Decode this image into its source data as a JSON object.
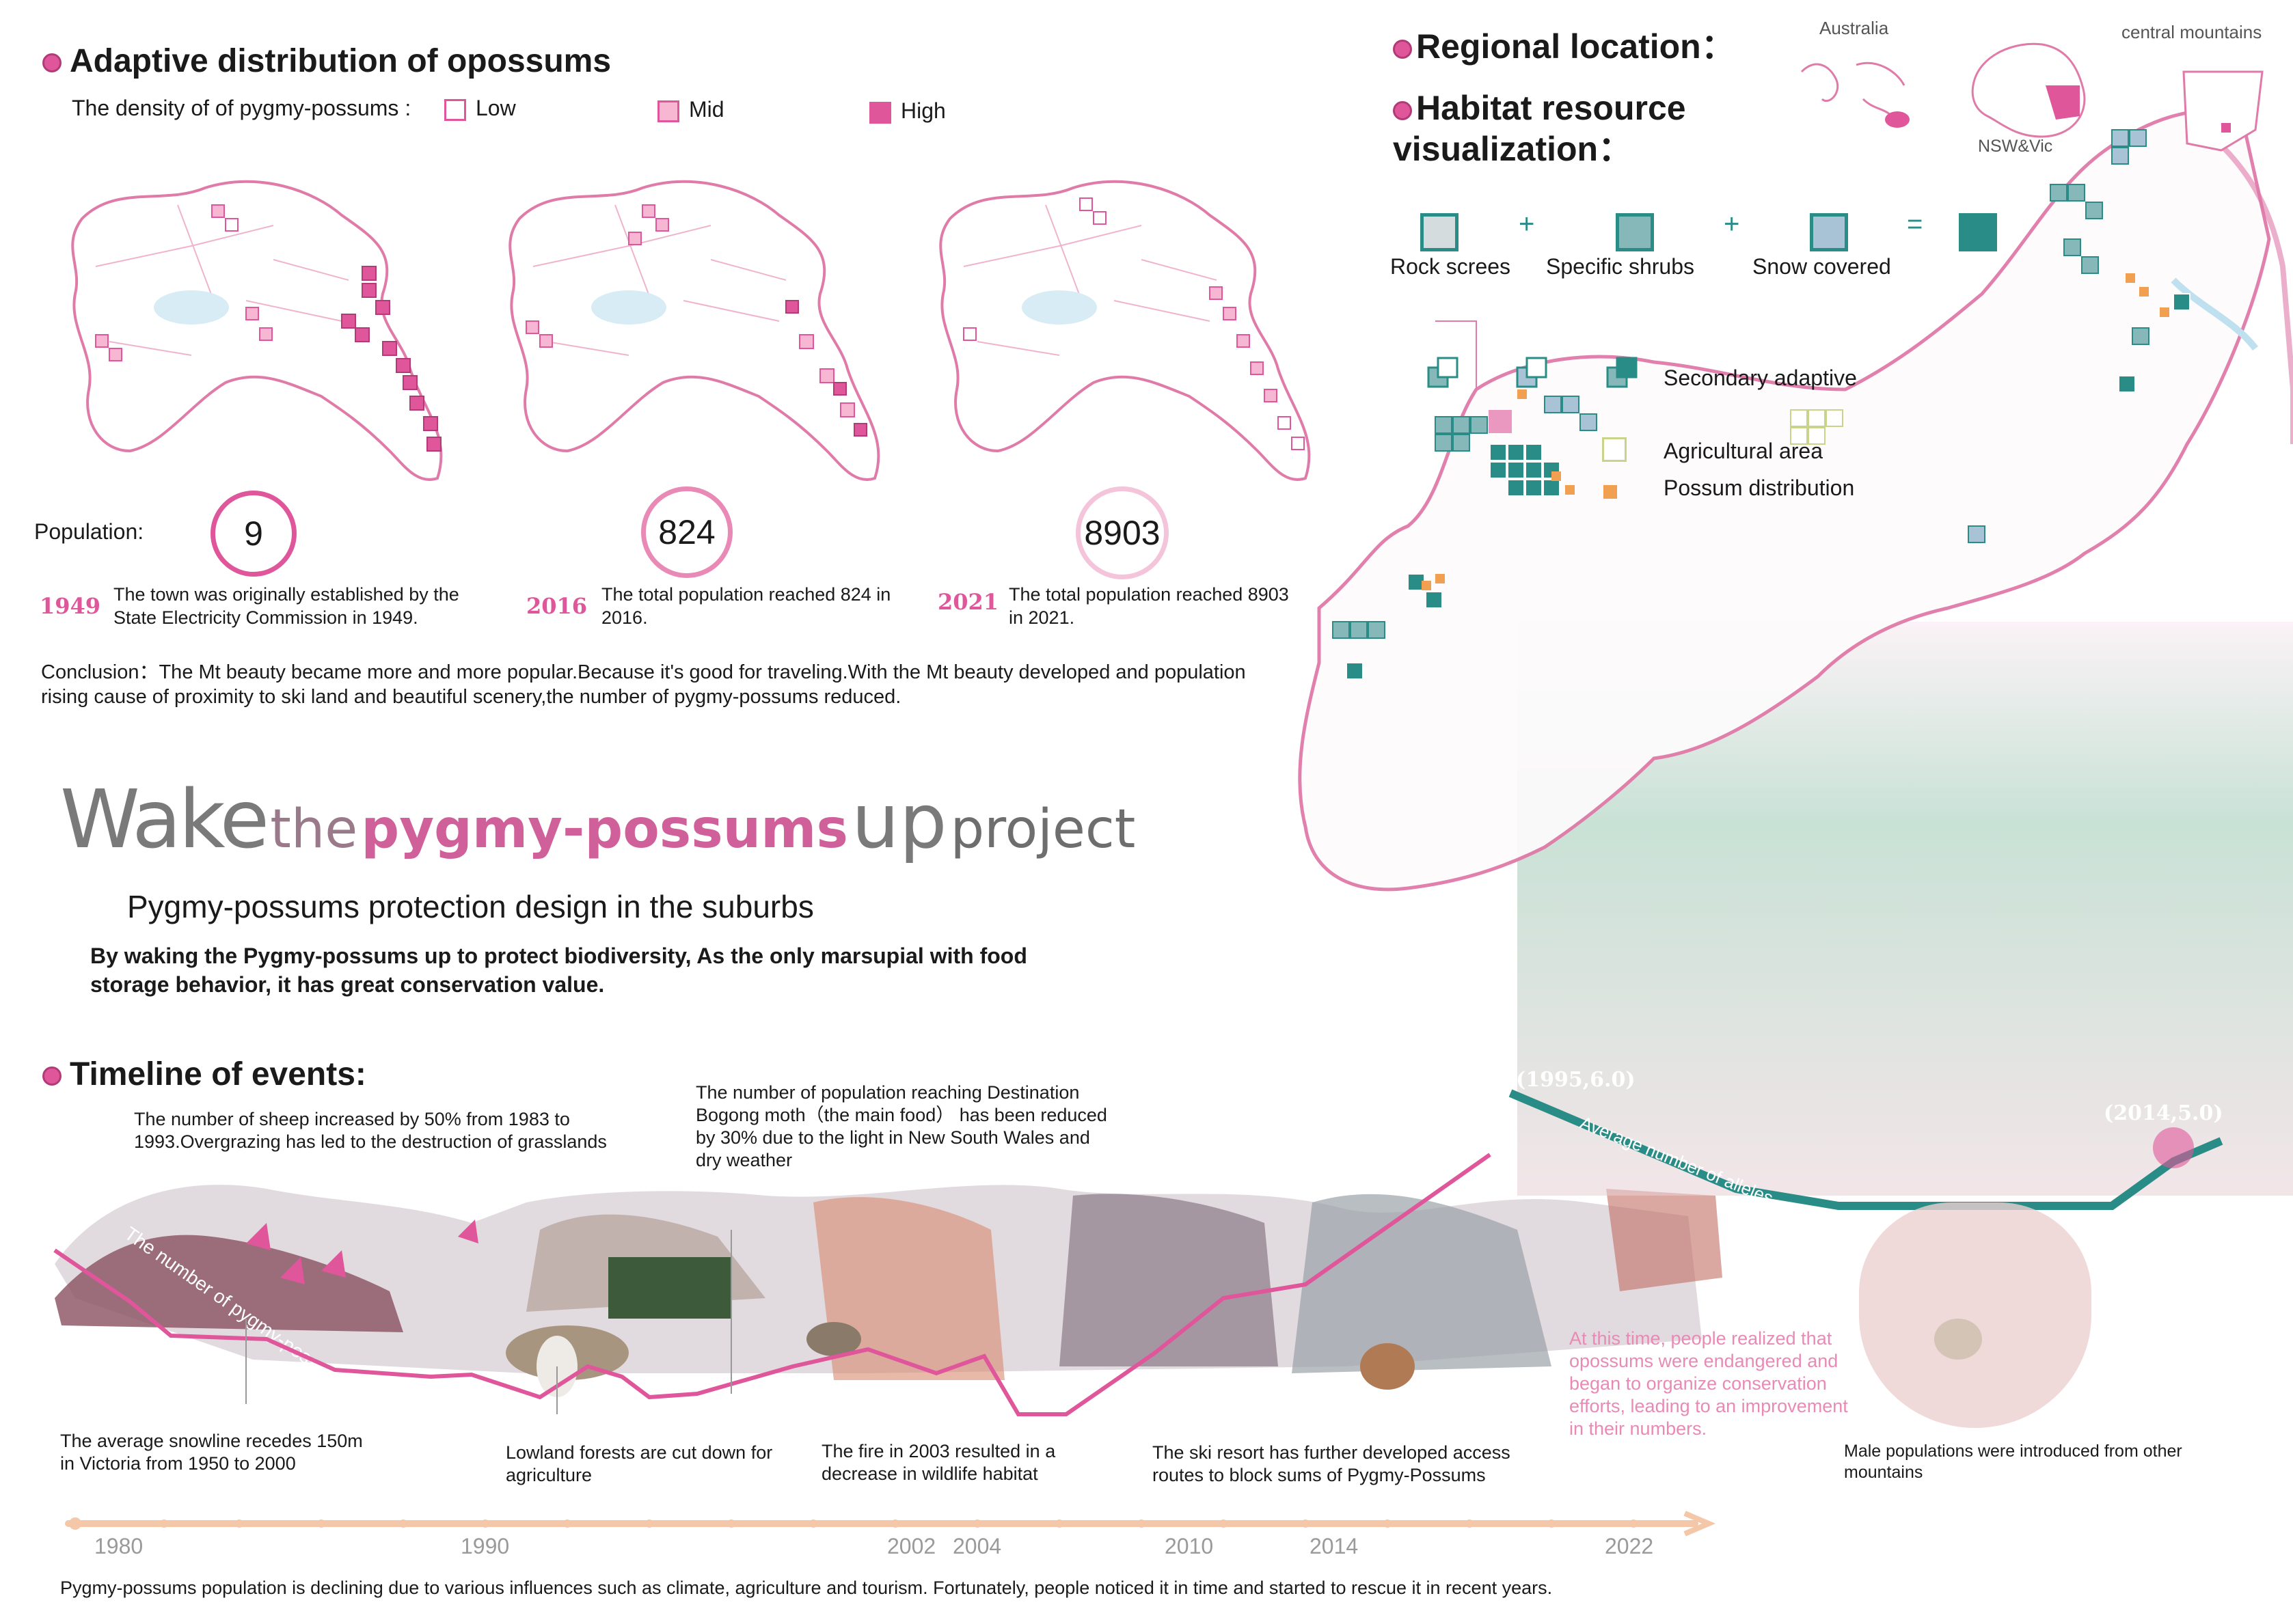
{
  "distribution": {
    "title": "Adaptive distribution of opossums",
    "density_label": "The density of of pygmy-possums :",
    "legend": [
      {
        "label": "Low",
        "fill": "#ffffff"
      },
      {
        "label": "Mid",
        "fill": "#f7b7d3"
      },
      {
        "label": "High",
        "fill": "#e0569a"
      }
    ],
    "population_label": "Population:",
    "snapshots": [
      {
        "population": "9",
        "year": "1949",
        "text": "The town was originally established by the State Electricity Commission in 1949."
      },
      {
        "population": "824",
        "year": "2016",
        "text": "The total population reached 824 in 2016."
      },
      {
        "population": "8903",
        "year": "2021",
        "text": "The total population reached 8903 in 2021."
      }
    ],
    "conclusion": "Conclusion：The Mt beauty became more and more popular.Because it's good for traveling.With the  Mt beauty developed and population rising cause of proximity to ski land and beautiful scenery,the number of pygmy-possums reduced."
  },
  "project": {
    "title_parts": [
      "Wake",
      "the",
      "pygmy-possums",
      "up",
      "project"
    ],
    "subtitle": "Pygmy-possums protection design in the suburbs",
    "description": "By waking the Pygmy-possums up to protect biodiversity, As the only marsupial with food storage behavior, it has great conservation value."
  },
  "regional": {
    "title": "Regional location：",
    "habitat_title": "Habitat resource visualization：",
    "map_labels": {
      "australia": "Australia",
      "nsw_vic": "NSW&Vic",
      "central": "central mountains"
    },
    "legend": [
      {
        "label": "Rock screes",
        "color": "#c9d2d4"
      },
      {
        "label": "Specific shrubs",
        "color": "#86b7b9"
      },
      {
        "label": "Snow covered",
        "color": "#a9c3d6"
      },
      {
        "label": "",
        "color": "#2a8c86"
      }
    ],
    "operators": [
      "+",
      "+",
      "="
    ],
    "secondary": "Secondary adaptive",
    "agricultural": "Agricultural area",
    "possum": "Possum distribution"
  },
  "timeline": {
    "title": "Timeline of events:",
    "events": [
      {
        "text": "The number of sheep increased by 50% from 1983 to 1993.Overgrazing has led to the destruction of grasslands"
      },
      {
        "text": "The number of population reaching Destination Bogong moth（the main food） has been reduced by 30% due to the light in New South Wales and dry weather"
      },
      {
        "text": "The average snowline recedes 150m in Victoria from 1950 to 2000"
      },
      {
        "text": "Lowland forests are cut down for agriculture"
      },
      {
        "text": "The fire in 2003 resulted in a decrease in wildlife habitat"
      },
      {
        "text": "The ski resort has further developed access routes to block sums of Pygmy-Possums"
      },
      {
        "text": "At this time, people realized that opossums were endangered and began to organize conservation efforts, leading to an improvement in their numbers."
      },
      {
        "text": "Male populations were introduced from other mountains"
      }
    ],
    "curve_label": "The number of pygmy-possums",
    "alleles_label": "Average number of alleles",
    "points": [
      "(1995,6.0)",
      "(2014,5.0)"
    ],
    "axis_years": [
      "1980",
      "1990",
      "2002",
      "2004",
      "2010",
      "2014",
      "2022"
    ],
    "footer": "Pygmy-possums population is declining due to various influences such as climate, agriculture and tourism. Fortunately, people noticed it in time and started to rescue it in recent years."
  },
  "colors": {
    "pink": "#e0569a",
    "teal": "#2a8c86",
    "axis": "#f3c7a8"
  }
}
